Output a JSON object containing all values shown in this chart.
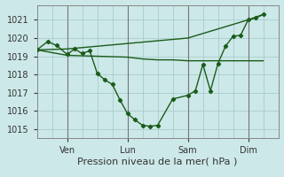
{
  "bg_color": "#cde8e8",
  "grid_color": "#aacccc",
  "line_color": "#1a5c1a",
  "marker_color": "#1a5c1a",
  "xlabel": "Pression niveau de la mer( hPa )",
  "xlabel_fontsize": 8,
  "yticks": [
    1015,
    1016,
    1017,
    1018,
    1019,
    1020,
    1021
  ],
  "ylim": [
    1014.5,
    1021.8
  ],
  "xlim": [
    0,
    8.0
  ],
  "xtick_labels": [
    "Ven",
    "Lun",
    "Sam",
    "Dim"
  ],
  "xtick_positions": [
    1,
    3,
    5,
    7
  ],
  "vline_positions": [
    1,
    3,
    5,
    7
  ],
  "series": [
    {
      "x": [
        0.0,
        1.0,
        2.0,
        3.0,
        3.5,
        4.0,
        4.5,
        5.0,
        5.5,
        6.0,
        6.5,
        7.0,
        7.5
      ],
      "y": [
        1019.35,
        1019.05,
        1019.0,
        1018.95,
        1018.85,
        1018.8,
        1018.8,
        1018.75,
        1018.75,
        1018.75,
        1018.75,
        1018.75,
        1018.75
      ],
      "style": "line_only",
      "lw": 1.0
    },
    {
      "x": [
        0.0,
        1.0,
        2.0,
        3.0,
        4.0,
        5.0,
        6.0,
        7.0,
        7.5
      ],
      "y": [
        1019.35,
        1019.4,
        1019.55,
        1019.7,
        1019.85,
        1020.0,
        1020.5,
        1021.0,
        1021.3
      ],
      "style": "line_only",
      "lw": 1.0
    },
    {
      "x": [
        0.0,
        0.35,
        0.65,
        1.0,
        1.25,
        1.5,
        1.75,
        2.0,
        2.25,
        2.5,
        2.75,
        3.0,
        3.25,
        3.5,
        3.75,
        4.0,
        4.5,
        5.0,
        5.25,
        5.5,
        5.75,
        6.0,
        6.25,
        6.5,
        6.75,
        7.0,
        7.25,
        7.5
      ],
      "y": [
        1019.35,
        1019.8,
        1019.6,
        1019.1,
        1019.4,
        1019.15,
        1019.3,
        1018.05,
        1017.7,
        1017.45,
        1016.6,
        1015.85,
        1015.5,
        1015.2,
        1015.15,
        1015.2,
        1016.65,
        1016.85,
        1017.1,
        1018.55,
        1017.1,
        1018.6,
        1019.55,
        1020.1,
        1020.15,
        1021.0,
        1021.1,
        1021.3
      ],
      "style": "line_marker",
      "lw": 1.0
    }
  ]
}
